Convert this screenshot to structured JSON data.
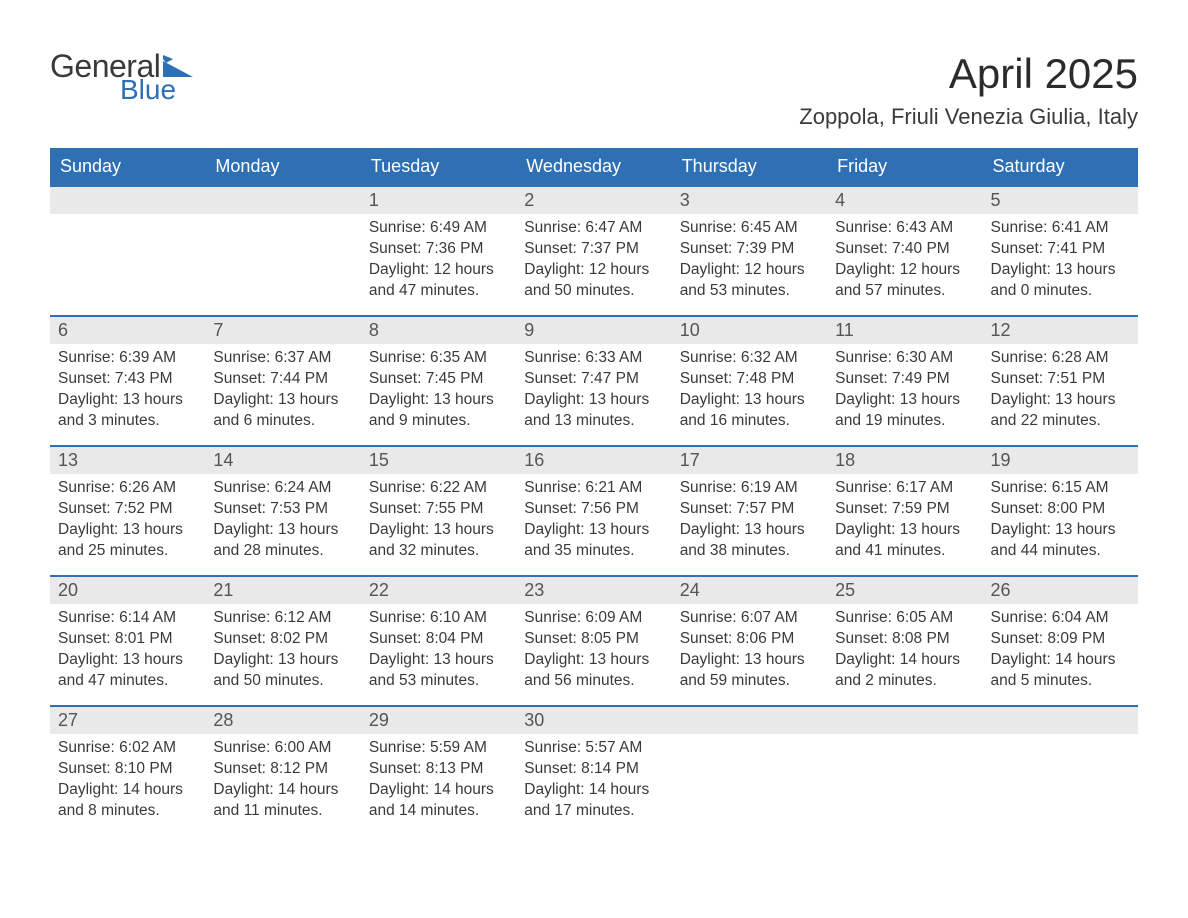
{
  "logo": {
    "general": "General",
    "blue": "Blue"
  },
  "title": "April 2025",
  "location": "Zoppola, Friuli Venezia Giulia, Italy",
  "colors": {
    "header_bg": "#2f6fb3",
    "header_text": "#ffffff",
    "daynum_bg": "#e9e9e9",
    "text": "#3a3a3a",
    "week_border": "#2f6fb3",
    "logo_gray": "#3a3a3a",
    "logo_blue": "#2f6fb3"
  },
  "fonts": {
    "title_size": 42,
    "location_size": 22,
    "header_size": 18,
    "daynum_size": 18,
    "body_size": 15.5
  },
  "day_names": [
    "Sunday",
    "Monday",
    "Tuesday",
    "Wednesday",
    "Thursday",
    "Friday",
    "Saturday"
  ],
  "weeks": [
    [
      {
        "n": "",
        "empty": true
      },
      {
        "n": "",
        "empty": true
      },
      {
        "n": "1",
        "sr": "Sunrise: 6:49 AM",
        "ss": "Sunset: 7:36 PM",
        "dl": "Daylight: 12 hours and 47 minutes."
      },
      {
        "n": "2",
        "sr": "Sunrise: 6:47 AM",
        "ss": "Sunset: 7:37 PM",
        "dl": "Daylight: 12 hours and 50 minutes."
      },
      {
        "n": "3",
        "sr": "Sunrise: 6:45 AM",
        "ss": "Sunset: 7:39 PM",
        "dl": "Daylight: 12 hours and 53 minutes."
      },
      {
        "n": "4",
        "sr": "Sunrise: 6:43 AM",
        "ss": "Sunset: 7:40 PM",
        "dl": "Daylight: 12 hours and 57 minutes."
      },
      {
        "n": "5",
        "sr": "Sunrise: 6:41 AM",
        "ss": "Sunset: 7:41 PM",
        "dl": "Daylight: 13 hours and 0 minutes."
      }
    ],
    [
      {
        "n": "6",
        "sr": "Sunrise: 6:39 AM",
        "ss": "Sunset: 7:43 PM",
        "dl": "Daylight: 13 hours and 3 minutes."
      },
      {
        "n": "7",
        "sr": "Sunrise: 6:37 AM",
        "ss": "Sunset: 7:44 PM",
        "dl": "Daylight: 13 hours and 6 minutes."
      },
      {
        "n": "8",
        "sr": "Sunrise: 6:35 AM",
        "ss": "Sunset: 7:45 PM",
        "dl": "Daylight: 13 hours and 9 minutes."
      },
      {
        "n": "9",
        "sr": "Sunrise: 6:33 AM",
        "ss": "Sunset: 7:47 PM",
        "dl": "Daylight: 13 hours and 13 minutes."
      },
      {
        "n": "10",
        "sr": "Sunrise: 6:32 AM",
        "ss": "Sunset: 7:48 PM",
        "dl": "Daylight: 13 hours and 16 minutes."
      },
      {
        "n": "11",
        "sr": "Sunrise: 6:30 AM",
        "ss": "Sunset: 7:49 PM",
        "dl": "Daylight: 13 hours and 19 minutes."
      },
      {
        "n": "12",
        "sr": "Sunrise: 6:28 AM",
        "ss": "Sunset: 7:51 PM",
        "dl": "Daylight: 13 hours and 22 minutes."
      }
    ],
    [
      {
        "n": "13",
        "sr": "Sunrise: 6:26 AM",
        "ss": "Sunset: 7:52 PM",
        "dl": "Daylight: 13 hours and 25 minutes."
      },
      {
        "n": "14",
        "sr": "Sunrise: 6:24 AM",
        "ss": "Sunset: 7:53 PM",
        "dl": "Daylight: 13 hours and 28 minutes."
      },
      {
        "n": "15",
        "sr": "Sunrise: 6:22 AM",
        "ss": "Sunset: 7:55 PM",
        "dl": "Daylight: 13 hours and 32 minutes."
      },
      {
        "n": "16",
        "sr": "Sunrise: 6:21 AM",
        "ss": "Sunset: 7:56 PM",
        "dl": "Daylight: 13 hours and 35 minutes."
      },
      {
        "n": "17",
        "sr": "Sunrise: 6:19 AM",
        "ss": "Sunset: 7:57 PM",
        "dl": "Daylight: 13 hours and 38 minutes."
      },
      {
        "n": "18",
        "sr": "Sunrise: 6:17 AM",
        "ss": "Sunset: 7:59 PM",
        "dl": "Daylight: 13 hours and 41 minutes."
      },
      {
        "n": "19",
        "sr": "Sunrise: 6:15 AM",
        "ss": "Sunset: 8:00 PM",
        "dl": "Daylight: 13 hours and 44 minutes."
      }
    ],
    [
      {
        "n": "20",
        "sr": "Sunrise: 6:14 AM",
        "ss": "Sunset: 8:01 PM",
        "dl": "Daylight: 13 hours and 47 minutes."
      },
      {
        "n": "21",
        "sr": "Sunrise: 6:12 AM",
        "ss": "Sunset: 8:02 PM",
        "dl": "Daylight: 13 hours and 50 minutes."
      },
      {
        "n": "22",
        "sr": "Sunrise: 6:10 AM",
        "ss": "Sunset: 8:04 PM",
        "dl": "Daylight: 13 hours and 53 minutes."
      },
      {
        "n": "23",
        "sr": "Sunrise: 6:09 AM",
        "ss": "Sunset: 8:05 PM",
        "dl": "Daylight: 13 hours and 56 minutes."
      },
      {
        "n": "24",
        "sr": "Sunrise: 6:07 AM",
        "ss": "Sunset: 8:06 PM",
        "dl": "Daylight: 13 hours and 59 minutes."
      },
      {
        "n": "25",
        "sr": "Sunrise: 6:05 AM",
        "ss": "Sunset: 8:08 PM",
        "dl": "Daylight: 14 hours and 2 minutes."
      },
      {
        "n": "26",
        "sr": "Sunrise: 6:04 AM",
        "ss": "Sunset: 8:09 PM",
        "dl": "Daylight: 14 hours and 5 minutes."
      }
    ],
    [
      {
        "n": "27",
        "sr": "Sunrise: 6:02 AM",
        "ss": "Sunset: 8:10 PM",
        "dl": "Daylight: 14 hours and 8 minutes."
      },
      {
        "n": "28",
        "sr": "Sunrise: 6:00 AM",
        "ss": "Sunset: 8:12 PM",
        "dl": "Daylight: 14 hours and 11 minutes."
      },
      {
        "n": "29",
        "sr": "Sunrise: 5:59 AM",
        "ss": "Sunset: 8:13 PM",
        "dl": "Daylight: 14 hours and 14 minutes."
      },
      {
        "n": "30",
        "sr": "Sunrise: 5:57 AM",
        "ss": "Sunset: 8:14 PM",
        "dl": "Daylight: 14 hours and 17 minutes."
      },
      {
        "n": "",
        "empty": true
      },
      {
        "n": "",
        "empty": true
      },
      {
        "n": "",
        "empty": true
      }
    ]
  ]
}
